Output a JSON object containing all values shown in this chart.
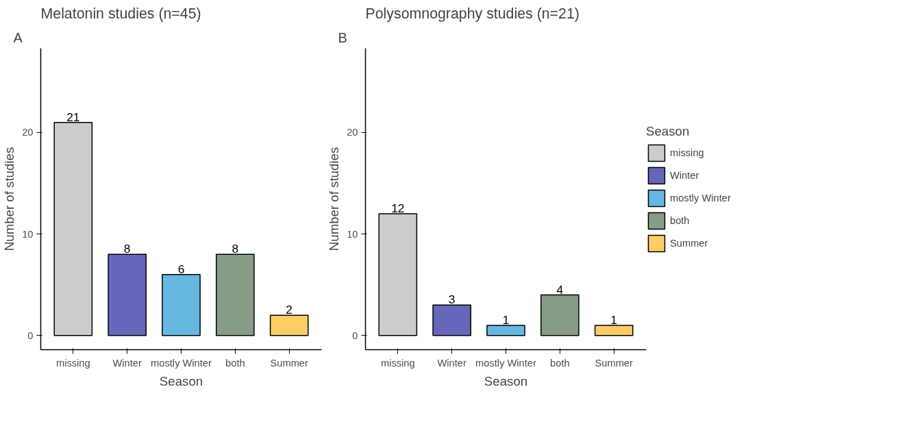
{
  "chart_data": [
    {
      "type": "bar",
      "title": "Melatonin studies (n=45)",
      "annotations": [
        "A"
      ],
      "xlabel": "Season",
      "ylabel": "Number of studies",
      "categories": [
        "missing",
        "Winter",
        "mostly Winter",
        "both",
        "Summer"
      ],
      "values": [
        21,
        8,
        6,
        8,
        2
      ],
      "colors": [
        "#cccccc",
        "#6666bb",
        "#66b8e0",
        "#869c86",
        "#ffcc66"
      ],
      "ylim": [
        -1.4,
        28.3
      ],
      "yticks": [
        0,
        10,
        20
      ],
      "grid": false,
      "legend": false,
      "data_labels": true
    },
    {
      "type": "bar",
      "title": "Polysomnography studies (n=21)",
      "annotations": [
        "B"
      ],
      "xlabel": "Season",
      "ylabel": "Number of studies",
      "categories": [
        "missing",
        "Winter",
        "mostly Winter",
        "both",
        "Summer"
      ],
      "series": [
        {
          "name": "missing",
          "color": "#cccccc",
          "values": [
            12,
            null,
            null,
            null,
            null
          ]
        },
        {
          "name": "Winter",
          "color": "#6666bb",
          "values": [
            null,
            3,
            null,
            null,
            null
          ]
        },
        {
          "name": "mostly Winter",
          "color": "#66b8e0",
          "values": [
            null,
            null,
            1,
            null,
            null
          ]
        },
        {
          "name": "both",
          "color": "#869c86",
          "values": [
            null,
            null,
            null,
            4,
            null
          ]
        },
        {
          "name": "Summer",
          "color": "#ffcc66",
          "values": [
            null,
            null,
            null,
            null,
            1
          ]
        }
      ],
      "ylim": [
        -1.4,
        28.3
      ],
      "yticks": [
        0,
        10,
        20
      ],
      "grid": false,
      "legend": "right",
      "legend_title": "Season",
      "data_labels": true
    }
  ]
}
